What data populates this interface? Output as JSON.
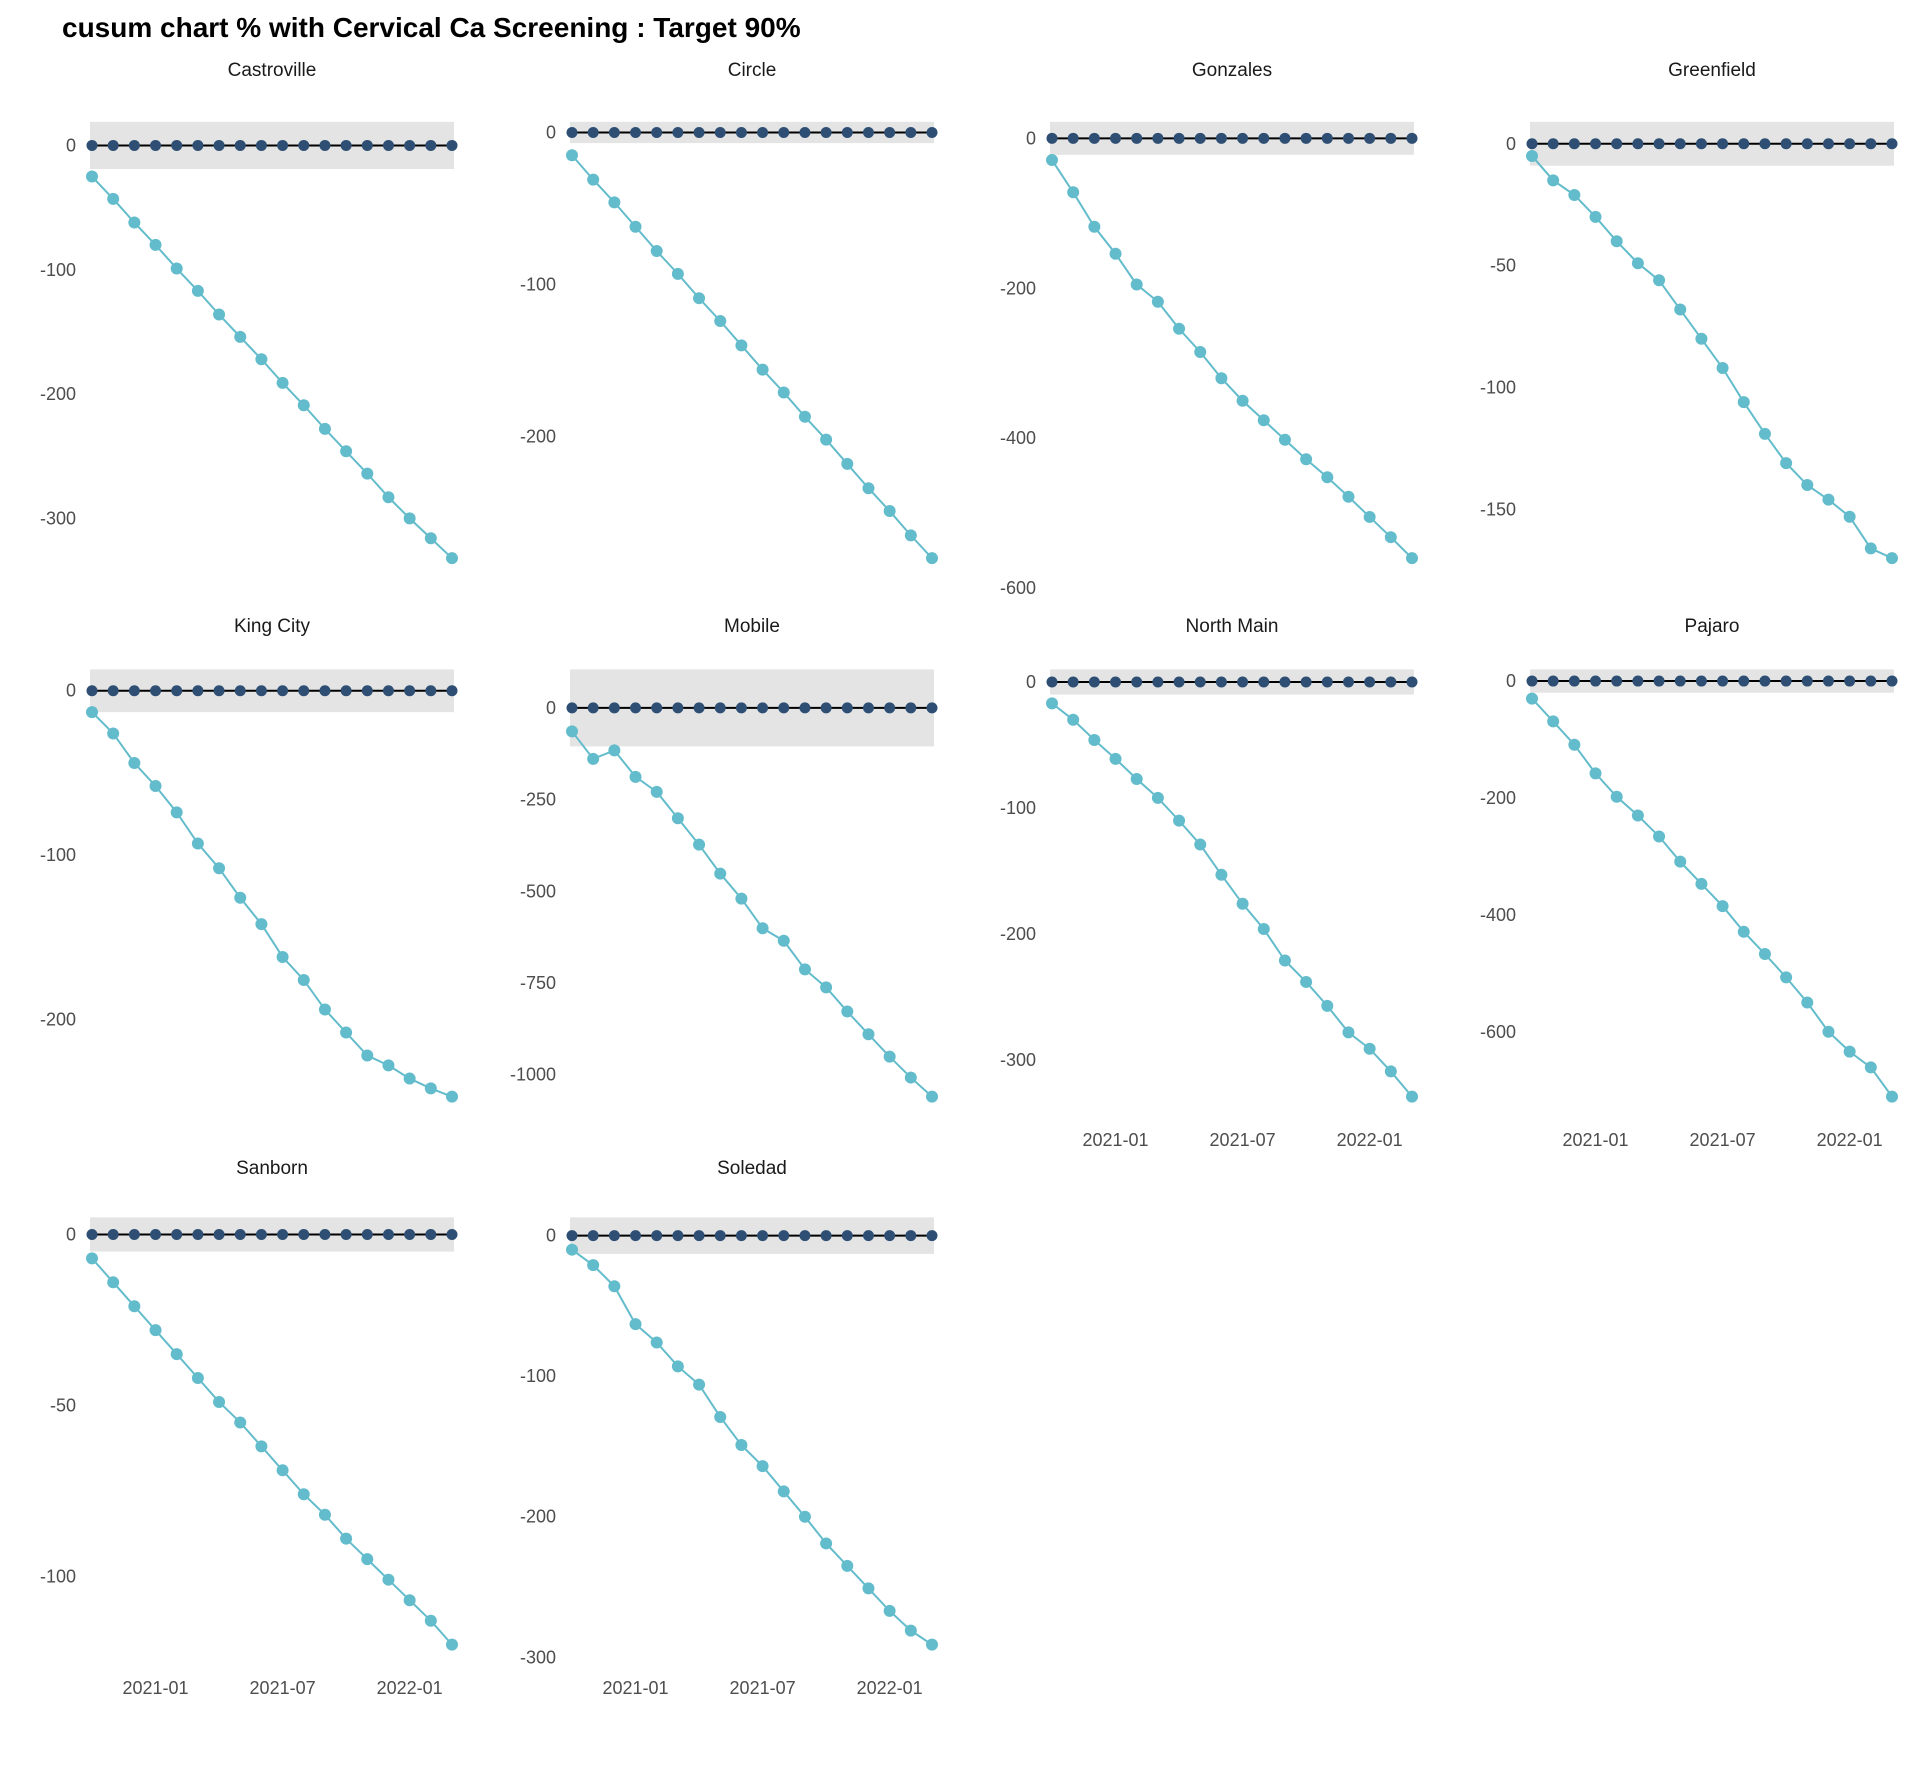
{
  "page": {
    "title": "cusum chart % with Cervical Ca Screening : Target 90%"
  },
  "colors": {
    "cusum_line": "#63BCCB",
    "target_point": "#2E4F73",
    "center_line": "#000000",
    "control_band": "#E4E4E4",
    "tick_label": "#4D4D4D",
    "facet_title": "#1A1A1A",
    "page_title": "#000000",
    "background": "#FFFFFF"
  },
  "chart_data": {
    "type": "line",
    "title": "cusum chart % with Cervical Ca Screening : Target 90%",
    "description": "CUSUM of observed minus target (90%) screening percentage by site; navy points are the zero target reference line inside a gray control-limit band; teal points are the cumulative sum.",
    "grid_columns": 4,
    "target_value": 0,
    "x_months": [
      "2020-10",
      "2020-11",
      "2020-12",
      "2021-01",
      "2021-02",
      "2021-03",
      "2021-04",
      "2021-05",
      "2021-06",
      "2021-07",
      "2021-08",
      "2021-09",
      "2021-10",
      "2021-11",
      "2021-12",
      "2022-01",
      "2022-02",
      "2022-03"
    ],
    "x_tick_labels": [
      "2021-01",
      "2021-07",
      "2022-01"
    ],
    "x_tick_indices": [
      3,
      9,
      15
    ],
    "facets": [
      {
        "name": "Castroville",
        "yticks": [
          0,
          -100,
          -200,
          -300
        ],
        "control_limit": 19,
        "show_x_labels": false,
        "cusum_values": [
          -25,
          -43,
          -62,
          -80,
          -99,
          -117,
          -136,
          -154,
          -172,
          -191,
          -209,
          -228,
          -246,
          -264,
          -283,
          -300,
          -316,
          -332
        ]
      },
      {
        "name": "Circle",
        "yticks": [
          0,
          -100,
          -200
        ],
        "control_limit": 7,
        "show_x_labels": false,
        "cusum_values": [
          -15,
          -31,
          -46,
          -62,
          -78,
          -93,
          -109,
          -124,
          -140,
          -156,
          -171,
          -187,
          -202,
          -218,
          -234,
          -249,
          -265,
          -280
        ]
      },
      {
        "name": "Gonzales",
        "yticks": [
          0,
          -200,
          -400,
          -600
        ],
        "control_limit": 22,
        "show_x_labels": false,
        "cusum_values": [
          -29,
          -72,
          -118,
          -154,
          -195,
          -218,
          -254,
          -285,
          -320,
          -350,
          -376,
          -402,
          -428,
          -452,
          -478,
          -505,
          -532,
          -560
        ]
      },
      {
        "name": "Greenfield",
        "yticks": [
          0,
          -50,
          -100,
          -150
        ],
        "control_limit": 9,
        "show_x_labels": false,
        "cusum_values": [
          -5,
          -15,
          -21,
          -30,
          -40,
          -49,
          -56,
          -68,
          -80,
          -92,
          -106,
          -119,
          -131,
          -140,
          -146,
          -153,
          -166,
          -170
        ]
      },
      {
        "name": "King City",
        "yticks": [
          0,
          -100,
          -200
        ],
        "control_limit": 13,
        "show_x_labels": false,
        "cusum_values": [
          -13,
          -26,
          -44,
          -58,
          -74,
          -93,
          -108,
          -126,
          -142,
          -162,
          -176,
          -194,
          -208,
          -222,
          -228,
          -236,
          -242,
          -247
        ]
      },
      {
        "name": "Mobile",
        "yticks": [
          0,
          -250,
          -500,
          -750,
          -1000
        ],
        "control_limit": 105,
        "show_x_labels": false,
        "cusum_values": [
          -64,
          -139,
          -116,
          -188,
          -229,
          -301,
          -373,
          -452,
          -520,
          -601,
          -635,
          -713,
          -762,
          -828,
          -890,
          -951,
          -1008,
          -1060
        ]
      },
      {
        "name": "North Main",
        "yticks": [
          0,
          -100,
          -200,
          -300
        ],
        "control_limit": 10,
        "show_x_labels": true,
        "cusum_values": [
          -17,
          -30,
          -46,
          -61,
          -77,
          -92,
          -110,
          -129,
          -153,
          -176,
          -196,
          -221,
          -238,
          -257,
          -278,
          -291,
          -309,
          -329
        ]
      },
      {
        "name": "Pajaro",
        "yticks": [
          0,
          -200,
          -400,
          -600
        ],
        "control_limit": 20,
        "show_x_labels": true,
        "cusum_values": [
          -30,
          -69,
          -109,
          -158,
          -198,
          -230,
          -266,
          -309,
          -347,
          -385,
          -429,
          -467,
          -507,
          -550,
          -600,
          -634,
          -661,
          -711
        ]
      },
      {
        "name": "Sanborn",
        "yticks": [
          0,
          -50,
          -100
        ],
        "control_limit": 5,
        "show_x_labels": true,
        "cusum_values": [
          -7,
          -14,
          -21,
          -28,
          -35,
          -42,
          -49,
          -55,
          -62,
          -69,
          -76,
          -82,
          -89,
          -95,
          -101,
          -107,
          -113,
          -120
        ]
      },
      {
        "name": "Soledad",
        "yticks": [
          0,
          -100,
          -200,
          -300
        ],
        "control_limit": 13,
        "show_x_labels": true,
        "cusum_values": [
          -10,
          -21,
          -36,
          -63,
          -76,
          -93,
          -106,
          -129,
          -149,
          -164,
          -182,
          -200,
          -219,
          -235,
          -251,
          -267,
          -281,
          -291
        ]
      }
    ]
  }
}
